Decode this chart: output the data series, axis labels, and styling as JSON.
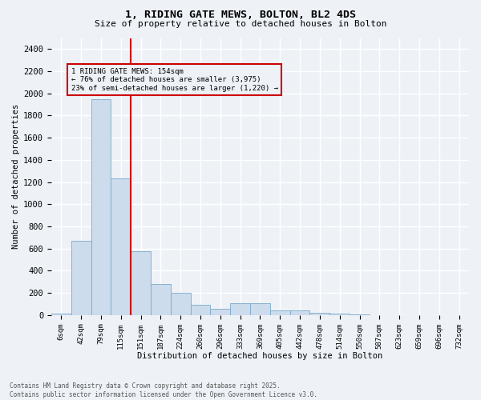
{
  "title_line1": "1, RIDING GATE MEWS, BOLTON, BL2 4DS",
  "title_line2": "Size of property relative to detached houses in Bolton",
  "xlabel": "Distribution of detached houses by size in Bolton",
  "ylabel": "Number of detached properties",
  "footer": "Contains HM Land Registry data © Crown copyright and database right 2025.\nContains public sector information licensed under the Open Government Licence v3.0.",
  "bar_color": "#ccdcec",
  "bar_edge_color": "#7aaac8",
  "categories": [
    "6sqm",
    "42sqm",
    "79sqm",
    "115sqm",
    "151sqm",
    "187sqm",
    "224sqm",
    "260sqm",
    "296sqm",
    "333sqm",
    "369sqm",
    "405sqm",
    "442sqm",
    "478sqm",
    "514sqm",
    "550sqm",
    "587sqm",
    "623sqm",
    "659sqm",
    "696sqm",
    "732sqm"
  ],
  "values": [
    10,
    670,
    1950,
    1230,
    580,
    280,
    200,
    90,
    55,
    110,
    110,
    45,
    45,
    20,
    10,
    3,
    2,
    1,
    1,
    0,
    0
  ],
  "red_line_index": 4,
  "annotation_text": "1 RIDING GATE MEWS: 154sqm\n← 76% of detached houses are smaller (3,975)\n23% of semi-detached houses are larger (1,220) →",
  "ylim": [
    0,
    2500
  ],
  "yticks": [
    0,
    200,
    400,
    600,
    800,
    1000,
    1200,
    1400,
    1600,
    1800,
    2000,
    2200,
    2400
  ],
  "background_color": "#eef2f7",
  "grid_color": "#ffffff",
  "red_line_color": "#cc0000",
  "annotation_box_color": "#cc0000"
}
